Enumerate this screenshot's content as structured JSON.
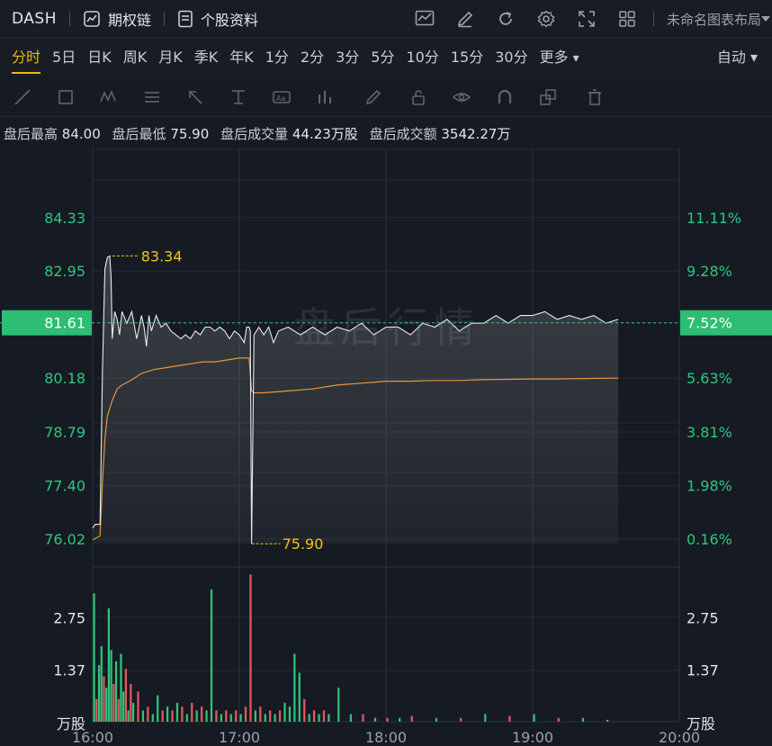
{
  "header": {
    "ticker": "DASH",
    "options_chain": "期权链",
    "stock_profile": "个股资料",
    "layout_name": "未命名图表布局",
    "icons": [
      "chart-type-icon",
      "draw-icon",
      "refresh-icon",
      "settings-icon",
      "fullscreen-icon",
      "grid-layout-icon"
    ]
  },
  "periods": {
    "items": [
      "分时",
      "5日",
      "日K",
      "周K",
      "月K",
      "季K",
      "年K",
      "1分",
      "2分",
      "3分",
      "5分",
      "10分",
      "15分",
      "30分",
      "更多"
    ],
    "active": "分时",
    "auto_label": "自动"
  },
  "toolbar": {
    "icons": [
      "line-tool-icon",
      "rect-tool-icon",
      "wave-tool-icon",
      "fib-tool-icon",
      "arrow-tool-icon",
      "measure-tool-icon",
      "text-tool-icon",
      "indicator-tool-icon",
      "pen-tool-icon",
      "lock-icon",
      "eye-icon",
      "magnet-icon",
      "layers-icon",
      "trash-icon"
    ]
  },
  "stats": {
    "high_label": "盘后最高",
    "high_value": "84.00",
    "low_label": "盘后最低",
    "low_value": "75.90",
    "volume_label": "盘后成交量",
    "volume_value": "44.23万股",
    "turnover_label": "盘后成交额",
    "turnover_value": "3542.27万"
  },
  "chart_data": {
    "type": "line",
    "watermark": "盘后行情",
    "current_price": "81.61",
    "current_pct": "7.52%",
    "price_ticks": [
      "84.33",
      "82.95",
      "81.61",
      "80.18",
      "78.79",
      "77.40",
      "76.02"
    ],
    "pct_ticks": [
      "11.11%",
      "9.28%",
      "7.52%",
      "5.63%",
      "3.81%",
      "1.98%",
      "0.16%"
    ],
    "ylim": [
      75.3,
      86.0
    ],
    "time_ticks": [
      "16:00",
      "17:00",
      "18:00",
      "19:00",
      "20:00"
    ],
    "xlim_minutes": [
      0,
      240
    ],
    "high_marker": {
      "value": "83.34",
      "x": 8,
      "y": 83.34
    },
    "low_marker": {
      "value": "75.90",
      "x": 65,
      "y": 75.9
    },
    "price_series": {
      "x": [
        0,
        1,
        3,
        4,
        5,
        6,
        7,
        7.5,
        8,
        9,
        10,
        11,
        12,
        14,
        16,
        18,
        20,
        21,
        22,
        23,
        24,
        26,
        28,
        30,
        32,
        34,
        36,
        38,
        40,
        42,
        44,
        46,
        48,
        50,
        52,
        54,
        56,
        58,
        60,
        62,
        63,
        64,
        64.5,
        65,
        66,
        68,
        70,
        72,
        74,
        76,
        80,
        85,
        90,
        95,
        100,
        105,
        110,
        115,
        120,
        125,
        130,
        135,
        140,
        145,
        150,
        155,
        160,
        165,
        170,
        175,
        180,
        185,
        190,
        195,
        200,
        205,
        210,
        215
      ],
      "y": [
        76.3,
        76.4,
        76.4,
        80.4,
        83.0,
        83.3,
        83.34,
        82.8,
        81.2,
        81.9,
        81.7,
        81.3,
        81.9,
        81.6,
        81.9,
        81.2,
        81.8,
        81.5,
        81.0,
        81.8,
        81.4,
        81.8,
        81.5,
        81.6,
        81.4,
        81.3,
        81.2,
        81.3,
        81.2,
        81.4,
        81.3,
        81.5,
        81.5,
        81.4,
        81.5,
        81.4,
        81.2,
        81.4,
        81.3,
        81.1,
        81.5,
        81.5,
        81.4,
        75.9,
        81.3,
        81.5,
        81.3,
        81.5,
        81.1,
        81.4,
        81.5,
        81.3,
        81.5,
        81.3,
        81.5,
        81.4,
        81.6,
        81.3,
        81.5,
        81.5,
        81.3,
        81.6,
        81.5,
        81.7,
        81.4,
        81.6,
        81.6,
        81.8,
        81.6,
        81.8,
        81.8,
        81.9,
        81.7,
        81.8,
        81.7,
        81.8,
        81.6,
        81.7
      ]
    },
    "avg_series": {
      "x": [
        0,
        3,
        4,
        5,
        6,
        8,
        10,
        12,
        15,
        20,
        25,
        30,
        35,
        40,
        45,
        50,
        55,
        60,
        63,
        64,
        65,
        66,
        70,
        80,
        90,
        100,
        110,
        120,
        130,
        140,
        150,
        160,
        170,
        180,
        190,
        200,
        215
      ],
      "y": [
        76.0,
        76.1,
        77.5,
        78.6,
        79.2,
        79.6,
        79.9,
        80.0,
        80.1,
        80.3,
        80.4,
        80.45,
        80.5,
        80.55,
        80.6,
        80.6,
        80.65,
        80.7,
        80.7,
        80.7,
        79.85,
        79.8,
        79.8,
        79.85,
        79.9,
        80.0,
        80.05,
        80.1,
        80.1,
        80.12,
        80.12,
        80.14,
        80.15,
        80.16,
        80.16,
        80.17,
        80.18
      ]
    },
    "volume": {
      "unit": "万股",
      "ticks": [
        "2.75",
        "1.37"
      ],
      "ylim": [
        0,
        4.1
      ],
      "x": [
        0,
        1,
        2,
        3,
        4,
        5,
        6,
        7,
        8,
        9,
        10,
        11,
        12,
        13,
        14,
        15,
        16,
        18,
        20,
        22,
        24,
        26,
        28,
        30,
        32,
        34,
        36,
        38,
        40,
        42,
        44,
        46,
        48,
        50,
        52,
        54,
        56,
        58,
        60,
        62,
        64,
        66,
        68,
        70,
        72,
        74,
        76,
        78,
        80,
        82,
        84,
        86,
        88,
        90,
        92,
        94,
        96,
        100,
        105,
        110,
        115,
        120,
        125,
        130,
        140,
        150,
        160,
        170,
        180,
        190,
        200,
        210
      ],
      "values": [
        3.4,
        0.6,
        1.5,
        2.0,
        1.2,
        0.9,
        3.0,
        1.9,
        1.0,
        1.6,
        0.6,
        1.8,
        0.8,
        1.4,
        0.3,
        1.0,
        0.5,
        0.8,
        0.3,
        0.4,
        0.2,
        0.7,
        0.3,
        0.4,
        0.3,
        0.5,
        0.4,
        0.2,
        0.5,
        0.3,
        0.4,
        0.3,
        3.5,
        0.3,
        0.2,
        0.3,
        0.2,
        0.3,
        0.2,
        0.4,
        3.9,
        0.3,
        0.4,
        0.2,
        0.3,
        0.2,
        0.3,
        0.5,
        0.4,
        1.8,
        1.3,
        0.6,
        0.2,
        0.3,
        0.2,
        0.3,
        0.2,
        0.9,
        0.2,
        0.2,
        0.1,
        0.1,
        0.1,
        0.15,
        0.1,
        0.1,
        0.2,
        0.15,
        0.2,
        0.1,
        0.1,
        0.05
      ],
      "colors": [
        "g",
        "r",
        "g",
        "g",
        "r",
        "g",
        "g",
        "g",
        "r",
        "g",
        "r",
        "g",
        "g",
        "r",
        "g",
        "r",
        "g",
        "r",
        "g",
        "r",
        "g",
        "g",
        "r",
        "g",
        "r",
        "g",
        "r",
        "g",
        "r",
        "g",
        "r",
        "g",
        "g",
        "r",
        "g",
        "r",
        "g",
        "r",
        "g",
        "r",
        "r",
        "g",
        "r",
        "g",
        "r",
        "g",
        "r",
        "g",
        "g",
        "g",
        "g",
        "r",
        "g",
        "r",
        "g",
        "r",
        "g",
        "g",
        "g",
        "r",
        "g",
        "r",
        "g",
        "r",
        "g",
        "r",
        "g",
        "r",
        "g",
        "r",
        "g",
        "g"
      ]
    },
    "colors": {
      "price_line": "#e8ebf0",
      "avg_line": "#e8963a",
      "up": "#e8585d",
      "down": "#2fc57f",
      "axis_text": "#2fc57f",
      "marker": "#f0c419",
      "badge": "#2dbd73"
    }
  }
}
